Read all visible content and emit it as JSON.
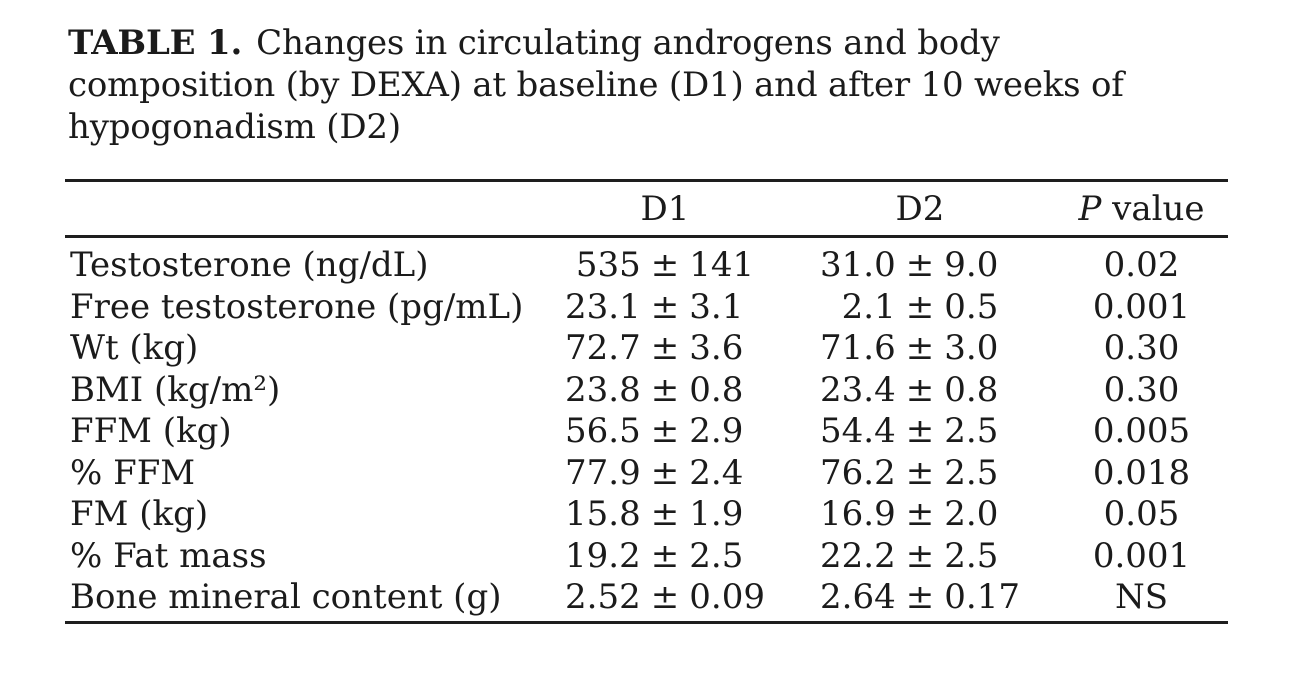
{
  "page": {
    "background": "#ffffff",
    "text_color": "#1b1b1b",
    "rule_color": "#1e1e1e"
  },
  "table": {
    "title": {
      "label": "TABLE 1.",
      "lines": [
        "Changes in circulating androgens and body",
        "composition (by DEXA) at baseline (D1) and after 10 weeks of",
        "hypogonadism (D2)"
      ]
    },
    "header": {
      "metric": "",
      "d1": "D1",
      "d2": "D2",
      "p_italic": "P",
      "p_rest": " value"
    },
    "plus_minus": "±",
    "rows": [
      {
        "label": "Testosterone (ng/dL)",
        "d1": {
          "mean": "535",
          "sd": "141"
        },
        "d2": {
          "mean": "31.0",
          "sd": "9.0"
        },
        "p": "0.02"
      },
      {
        "label": "Free testosterone (pg/mL)",
        "d1": {
          "mean": "23.1",
          "sd": "3.1"
        },
        "d2": {
          "mean": "2.1",
          "sd": "0.5"
        },
        "p": "0.001"
      },
      {
        "label": "Wt (kg)",
        "d1": {
          "mean": "72.7",
          "sd": "3.6"
        },
        "d2": {
          "mean": "71.6",
          "sd": "3.0"
        },
        "p": "0.30"
      },
      {
        "label": "BMI (kg/m²)",
        "d1": {
          "mean": "23.8",
          "sd": "0.8"
        },
        "d2": {
          "mean": "23.4",
          "sd": "0.8"
        },
        "p": "0.30"
      },
      {
        "label": "FFM (kg)",
        "d1": {
          "mean": "56.5",
          "sd": "2.9"
        },
        "d2": {
          "mean": "54.4",
          "sd": "2.5"
        },
        "p": "0.005"
      },
      {
        "label": "% FFM",
        "d1": {
          "mean": "77.9",
          "sd": "2.4"
        },
        "d2": {
          "mean": "76.2",
          "sd": "2.5"
        },
        "p": "0.018"
      },
      {
        "label": "FM (kg)",
        "d1": {
          "mean": "15.8",
          "sd": "1.9"
        },
        "d2": {
          "mean": "16.9",
          "sd": "2.0"
        },
        "p": "0.05"
      },
      {
        "label": "% Fat mass",
        "d1": {
          "mean": "19.2",
          "sd": "2.5"
        },
        "d2": {
          "mean": "22.2",
          "sd": "2.5"
        },
        "p": "0.001"
      },
      {
        "label": "Bone mineral content (g)",
        "d1": {
          "mean": "2.52",
          "sd": "0.09"
        },
        "d2": {
          "mean": "2.64",
          "sd": "0.17"
        },
        "p": "NS"
      }
    ]
  }
}
